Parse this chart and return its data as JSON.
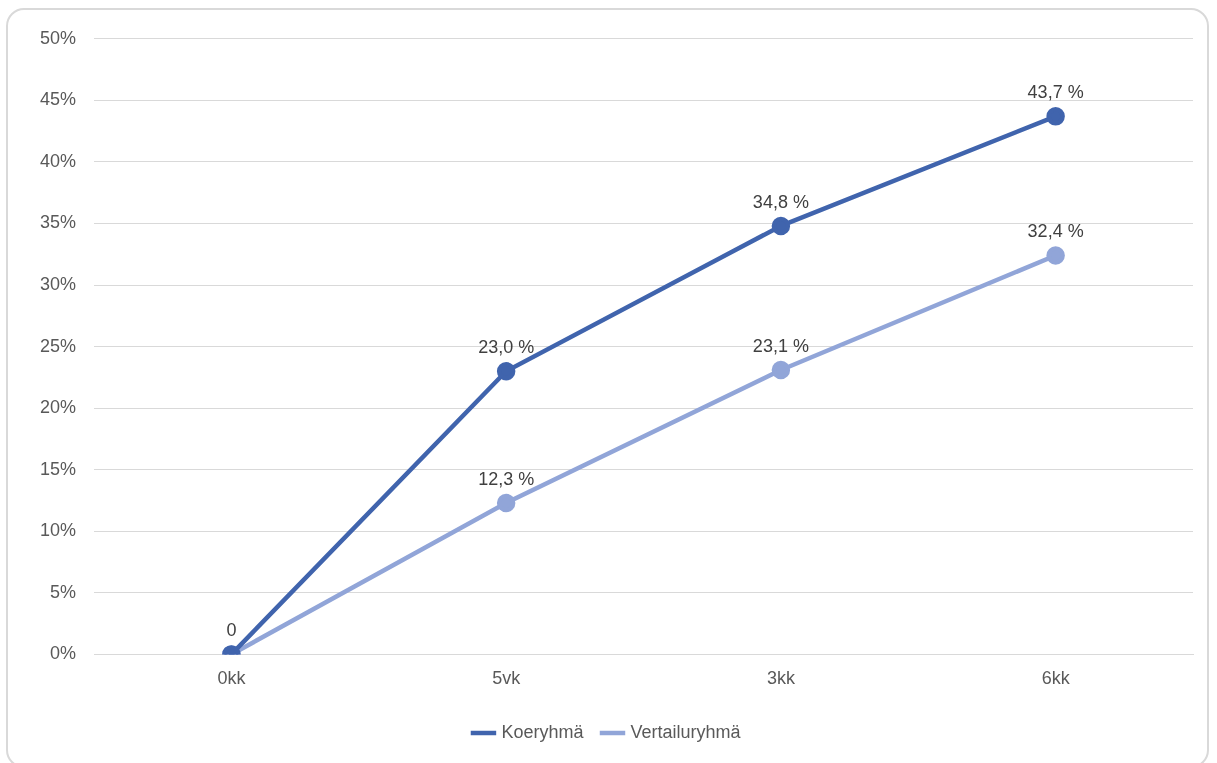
{
  "chart_data": {
    "type": "line",
    "categories": [
      "0kk",
      "5vk",
      "3kk",
      "6kk"
    ],
    "series": [
      {
        "name": "Koeryhmä",
        "color": "#4064ad",
        "values": [
          0,
          23.0,
          34.8,
          43.7
        ],
        "value_labels": [
          "0",
          "23,0 %",
          "34,8 %",
          "43,7 %"
        ]
      },
      {
        "name": "Vertailuryhmä",
        "color": "#91a5d8",
        "values": [
          0,
          12.3,
          23.1,
          32.4
        ],
        "value_labels": [
          null,
          "12,3 %",
          "23,1 %",
          "32,4 %"
        ]
      }
    ],
    "ylim": [
      0,
      50
    ],
    "yticks": [
      {
        "value": 0,
        "label": "0%"
      },
      {
        "value": 5,
        "label": "5%"
      },
      {
        "value": 10,
        "label": "10%"
      },
      {
        "value": 15,
        "label": "15%"
      },
      {
        "value": 20,
        "label": "20%"
      },
      {
        "value": 25,
        "label": "25%"
      },
      {
        "value": 30,
        "label": "30%"
      },
      {
        "value": 35,
        "label": "35%"
      },
      {
        "value": 40,
        "label": "40%"
      },
      {
        "value": 45,
        "label": "45%"
      },
      {
        "value": 50,
        "label": "50%"
      }
    ],
    "grid": "y",
    "legend": "bottom",
    "marker": "circle",
    "line_style": "solid"
  }
}
